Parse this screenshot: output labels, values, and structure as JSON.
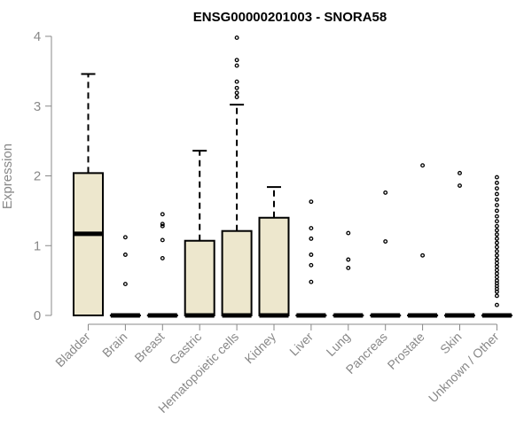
{
  "chart_data": {
    "type": "boxplot",
    "title": "ENSG00000201003 - SNORA58",
    "xlabel": "",
    "ylabel": "Expression",
    "ylim": [
      0,
      4
    ],
    "yticks": [
      0,
      1,
      2,
      3,
      4
    ],
    "box_fill": "#ede7cd",
    "box_stroke": "#000000",
    "axis_color": "#888888",
    "categories": [
      "Bladder",
      "Brain",
      "Breast",
      "Gastric",
      "Hematopoietic cells",
      "Kidney",
      "Liver",
      "Lung",
      "Pancreas",
      "Prostate",
      "Skin",
      "Unknown / Other"
    ],
    "boxes": [
      {
        "q1": 0,
        "median": 1.17,
        "q3": 2.04,
        "whisker_low": 0,
        "whisker_high": 3.46,
        "outliers": []
      },
      {
        "q1": 0,
        "median": 0,
        "q3": 0,
        "whisker_low": 0,
        "whisker_high": 0,
        "outliers": [
          0.45,
          0.87,
          1.12
        ]
      },
      {
        "q1": 0,
        "median": 0,
        "q3": 0,
        "whisker_low": 0,
        "whisker_high": 0,
        "outliers": [
          0.82,
          1.08,
          1.28,
          1.31,
          1.45
        ]
      },
      {
        "q1": 0,
        "median": 0,
        "q3": 1.07,
        "whisker_low": 0,
        "whisker_high": 2.36,
        "outliers": []
      },
      {
        "q1": 0,
        "median": 0,
        "q3": 1.21,
        "whisker_low": 0,
        "whisker_high": 3.02,
        "outliers": [
          3.13,
          3.19,
          3.26,
          3.35,
          3.58,
          3.66,
          3.98
        ]
      },
      {
        "q1": 0,
        "median": 0,
        "q3": 1.4,
        "whisker_low": 0,
        "whisker_high": 1.84,
        "outliers": []
      },
      {
        "q1": 0,
        "median": 0,
        "q3": 0,
        "whisker_low": 0,
        "whisker_high": 0,
        "outliers": [
          0.48,
          0.72,
          0.87,
          1.1,
          1.25,
          1.63
        ]
      },
      {
        "q1": 0,
        "median": 0,
        "q3": 0,
        "whisker_low": 0,
        "whisker_high": 0,
        "outliers": [
          0.68,
          0.8,
          1.18
        ]
      },
      {
        "q1": 0,
        "median": 0,
        "q3": 0,
        "whisker_low": 0,
        "whisker_high": 0,
        "outliers": [
          1.06,
          1.76
        ]
      },
      {
        "q1": 0,
        "median": 0,
        "q3": 0,
        "whisker_low": 0,
        "whisker_high": 0,
        "outliers": [
          0.86,
          2.15
        ]
      },
      {
        "q1": 0,
        "median": 0,
        "q3": 0,
        "whisker_low": 0,
        "whisker_high": 0,
        "outliers": [
          1.86,
          2.04
        ]
      },
      {
        "q1": 0,
        "median": 0,
        "q3": 0,
        "whisker_low": 0,
        "whisker_high": 0,
        "outliers": [
          0.15,
          0.28,
          0.34,
          0.38,
          0.42,
          0.46,
          0.5,
          0.55,
          0.6,
          0.65,
          0.7,
          0.75,
          0.8,
          0.86,
          0.92,
          0.98,
          1.04,
          1.1,
          1.16,
          1.22,
          1.28,
          1.35,
          1.42,
          1.5,
          1.58,
          1.66,
          1.74,
          1.82,
          1.9,
          1.98
        ]
      }
    ]
  }
}
